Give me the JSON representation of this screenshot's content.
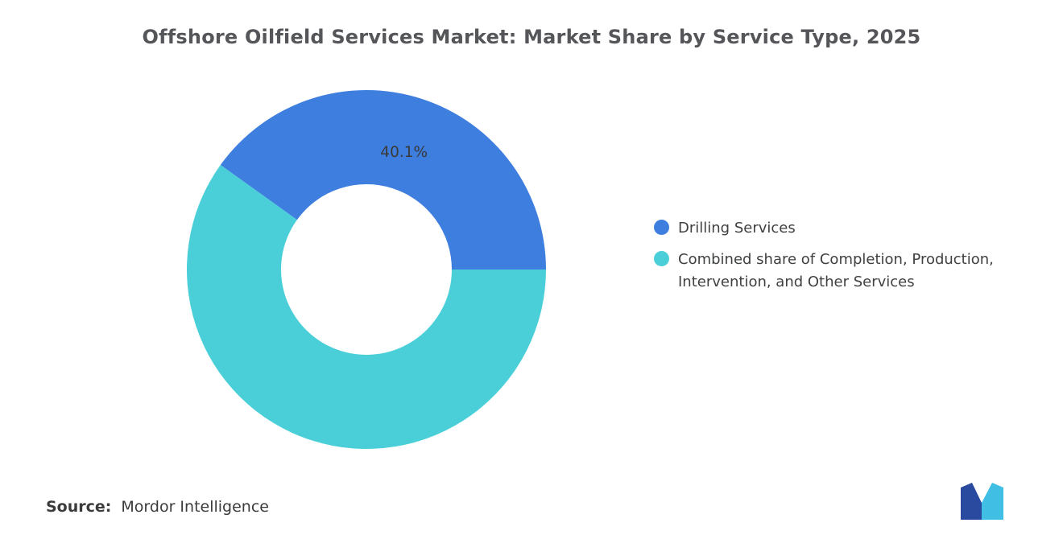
{
  "title": "Offshore Oilfield Services Market: Market Share by Service Type, 2025",
  "chart_data": {
    "type": "pie",
    "subtype": "donut",
    "title": "Offshore Oilfield Services Market: Market Share by Service Type, 2025",
    "units": "percent",
    "start_angle_deg": 0,
    "direction": "ccw",
    "legend_position": "right",
    "grid": false,
    "slices": [
      {
        "label": "Drilling Services",
        "value": 40.1,
        "data_label": "40.1%",
        "color": "#3e7ede"
      },
      {
        "label": "Combined share of Completion, Production, Intervention, and Other Services",
        "value": 59.9,
        "data_label": "",
        "color": "#4acfd9"
      }
    ]
  },
  "source": {
    "label": "Source:",
    "value": "Mordor Intelligence"
  },
  "logo": {
    "name": "mordor-intelligence-logo",
    "color_left": "#2a4a9f",
    "color_right": "#40bee4"
  },
  "style": {
    "data_label_color": "#3a3a3a",
    "title_color": "#55565a",
    "legend_text_color": "#3f4040"
  }
}
